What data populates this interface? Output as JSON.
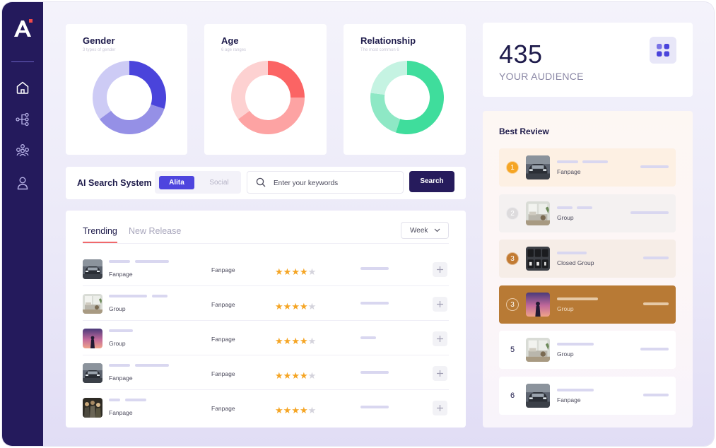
{
  "sidebar": {
    "logo_letter": "A",
    "items": [
      {
        "icon": "home-icon"
      },
      {
        "icon": "network-icon"
      },
      {
        "icon": "community-icon"
      },
      {
        "icon": "user-icon"
      }
    ]
  },
  "charts": [
    {
      "title": "Gender",
      "subtitle": "3 types of gender",
      "colors": [
        "#4a44db",
        "#9590e6",
        "#cdcbf5"
      ],
      "fractions": [
        0.3,
        0.35,
        0.35
      ]
    },
    {
      "title": "Age",
      "subtitle": "6 age ranges",
      "colors": [
        "#fb6464",
        "#fda3a3",
        "#fdd1d1"
      ],
      "fractions": [
        0.25,
        0.4,
        0.35
      ]
    },
    {
      "title": "Relationship",
      "subtitle": "The most common 6",
      "colors": [
        "#3fdd9c",
        "#8ee8c5",
        "#c5f3e2"
      ],
      "fractions": [
        0.55,
        0.22,
        0.23
      ]
    }
  ],
  "audience": {
    "count": "435",
    "label": "YOUR AUDIENCE",
    "icon": "apps-icon"
  },
  "search": {
    "title": "AI Search System",
    "toggle_active": "Alita",
    "toggle_inactive": "Social",
    "placeholder": "Enter your keywords",
    "button": "Search"
  },
  "trending": {
    "tab_active": "Trending",
    "tab_inactive": "New Release",
    "filter": "Week",
    "rows": [
      {
        "thumb": "car",
        "type": "Fanpage",
        "category": "Fanpage",
        "rating": 4
      },
      {
        "thumb": "room",
        "type": "Group",
        "category": "Fanpage",
        "rating": 4
      },
      {
        "thumb": "sunset",
        "type": "Group",
        "category": "Fanpage",
        "rating": 4
      },
      {
        "thumb": "car",
        "type": "Fanpage",
        "category": "Fanpage",
        "rating": 4
      },
      {
        "thumb": "crowd",
        "type": "Fanpage",
        "category": "Fanpage",
        "rating": 4
      }
    ]
  },
  "best_review": {
    "title": "Best Review",
    "items": [
      {
        "rank": "1",
        "thumb": "car",
        "type": "Fanpage",
        "style": "gold"
      },
      {
        "rank": "2",
        "thumb": "room",
        "type": "Group",
        "style": "silver"
      },
      {
        "rank": "3",
        "thumb": "clock",
        "type": "Closed Group",
        "style": "bronze"
      },
      {
        "rank": "3",
        "thumb": "sunset",
        "type": "Group",
        "style": "highlight"
      },
      {
        "rank": "5",
        "thumb": "room",
        "type": "Group",
        "style": "plain"
      },
      {
        "rank": "6",
        "thumb": "car",
        "type": "Fanpage",
        "style": "plain"
      }
    ]
  },
  "colors": {
    "sidebar": "#241a5c",
    "accent": "#4e45de",
    "star": "#f5a524",
    "highlight": "#b87a35"
  }
}
